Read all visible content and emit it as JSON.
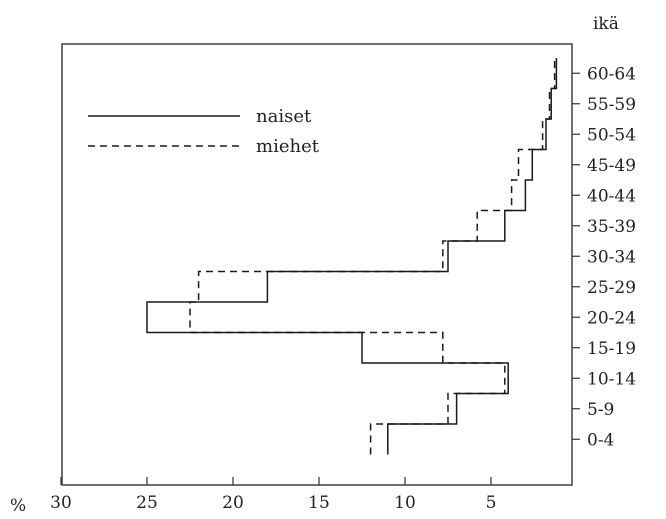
{
  "chart_data": {
    "type": "line",
    "title": "",
    "ylabel": "ikä",
    "xlabel": "%",
    "x_reversed": true,
    "xlim": [
      0,
      32
    ],
    "x_ticks": [
      30,
      25,
      20,
      15,
      10,
      5
    ],
    "categories": [
      "0-4",
      "5-9",
      "10-14",
      "15-19",
      "20-24",
      "25-29",
      "30-34",
      "35-39",
      "40-44",
      "45-49",
      "50-54",
      "55-59",
      "60-64"
    ],
    "series": [
      {
        "name": "naiset",
        "style": "solid",
        "color": "#1a1a1a",
        "values": [
          11.0,
          7.0,
          4.0,
          12.5,
          25.0,
          18.0,
          7.5,
          4.2,
          3.0,
          2.6,
          1.8,
          1.5,
          1.2
        ]
      },
      {
        "name": "miehet",
        "style": "dashed",
        "color": "#1a1a1a",
        "values": [
          12.0,
          7.5,
          4.2,
          7.8,
          22.5,
          22.0,
          7.8,
          5.8,
          3.8,
          3.4,
          2.0,
          1.6,
          1.3
        ]
      }
    ],
    "legend_position": "top-left",
    "grid": false
  }
}
